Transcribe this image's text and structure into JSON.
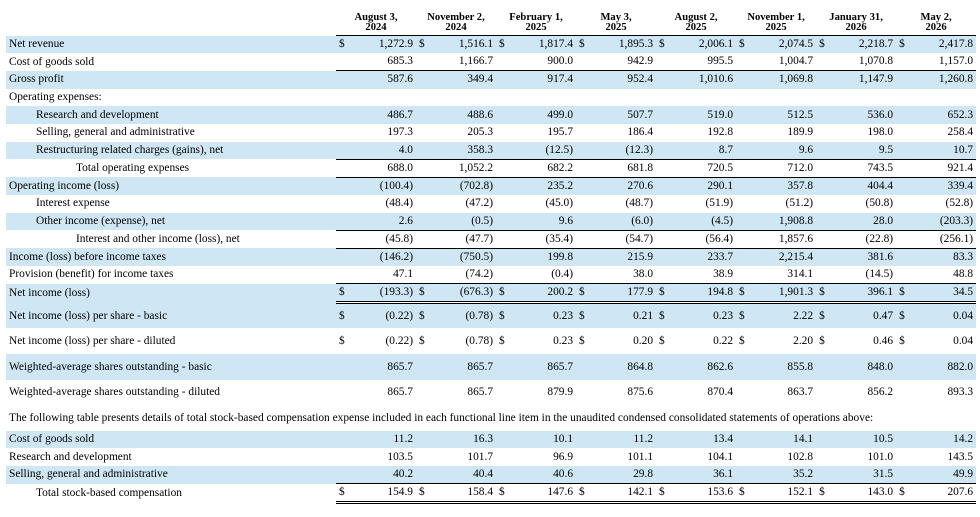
{
  "columns": [
    {
      "l1": "August 3,",
      "l2": "2024"
    },
    {
      "l1": "November 2,",
      "l2": "2024"
    },
    {
      "l1": "February 1,",
      "l2": "2025"
    },
    {
      "l1": "May 3,",
      "l2": "2025"
    },
    {
      "l1": "August 2,",
      "l2": "2025"
    },
    {
      "l1": "November 1,",
      "l2": "2025"
    },
    {
      "l1": "January 31,",
      "l2": "2026"
    },
    {
      "l1": "May 2,",
      "l2": "2026"
    }
  ],
  "currency": "$",
  "statement": [
    {
      "label": "Net revenue",
      "values": [
        "1,272.9",
        "1,516.1",
        "1,817.4",
        "1,895.3",
        "2,006.1",
        "2,074.5",
        "2,218.7",
        "2,417.8"
      ],
      "dollar": true,
      "indent": 0,
      "border": "",
      "shade": true
    },
    {
      "label": "Cost of goods sold",
      "values": [
        "685.3",
        "1,166.7",
        "900.0",
        "942.9",
        "995.5",
        "1,004.7",
        "1,070.8",
        "1,157.0"
      ],
      "dollar": false,
      "indent": 0,
      "border": "ul",
      "shade": false
    },
    {
      "label": "Gross profit",
      "values": [
        "587.6",
        "349.4",
        "917.4",
        "952.4",
        "1,010.6",
        "1,069.8",
        "1,147.9",
        "1,260.8"
      ],
      "dollar": false,
      "indent": 0,
      "border": "",
      "shade": true
    },
    {
      "label": "Operating expenses:",
      "values": [],
      "dollar": false,
      "indent": 0,
      "border": "",
      "shade": false
    },
    {
      "label": "Research and development",
      "values": [
        "486.7",
        "488.6",
        "499.0",
        "507.7",
        "519.0",
        "512.5",
        "536.0",
        "652.3"
      ],
      "dollar": false,
      "indent": 1,
      "border": "",
      "shade": true
    },
    {
      "label": "Selling, general and administrative",
      "values": [
        "197.3",
        "205.3",
        "195.7",
        "186.4",
        "192.8",
        "189.9",
        "198.0",
        "258.4"
      ],
      "dollar": false,
      "indent": 1,
      "border": "",
      "shade": false
    },
    {
      "label": "Restructuring related charges (gains), net",
      "values": [
        "4.0",
        "358.3",
        "(12.5)",
        "(12.3)",
        "8.7",
        "9.6",
        "9.5",
        "10.7"
      ],
      "dollar": false,
      "indent": 1,
      "border": "ul",
      "shade": true
    },
    {
      "label": "Total operating expenses",
      "values": [
        "688.0",
        "1,052.2",
        "682.2",
        "681.8",
        "720.5",
        "712.0",
        "743.5",
        "921.4"
      ],
      "dollar": false,
      "indent": 2,
      "border": "ul",
      "shade": false
    },
    {
      "label": "Operating income (loss)",
      "values": [
        "(100.4)",
        "(702.8)",
        "235.2",
        "270.6",
        "290.1",
        "357.8",
        "404.4",
        "339.4"
      ],
      "dollar": false,
      "indent": 0,
      "border": "",
      "shade": true
    },
    {
      "label": "Interest expense",
      "values": [
        "(48.4)",
        "(47.2)",
        "(45.0)",
        "(48.7)",
        "(51.9)",
        "(51.2)",
        "(50.8)",
        "(52.8)"
      ],
      "dollar": false,
      "indent": 1,
      "border": "",
      "shade": false
    },
    {
      "label": "Other income (expense), net",
      "values": [
        "2.6",
        "(0.5)",
        "9.6",
        "(6.0)",
        "(4.5)",
        "1,908.8",
        "28.0",
        "(203.3)"
      ],
      "dollar": false,
      "indent": 1,
      "border": "ul",
      "shade": true
    },
    {
      "label": "Interest and other income (loss), net",
      "values": [
        "(45.8)",
        "(47.7)",
        "(35.4)",
        "(54.7)",
        "(56.4)",
        "1,857.6",
        "(22.8)",
        "(256.1)"
      ],
      "dollar": false,
      "indent": 2,
      "border": "ul",
      "shade": false
    },
    {
      "label": "Income (loss) before income taxes",
      "values": [
        "(146.2)",
        "(750.5)",
        "199.8",
        "215.9",
        "233.7",
        "2,215.4",
        "381.6",
        "83.3"
      ],
      "dollar": false,
      "indent": 0,
      "border": "",
      "shade": true
    },
    {
      "label": "Provision (benefit) for income taxes",
      "values": [
        "47.1",
        "(74.2)",
        "(0.4)",
        "38.0",
        "38.9",
        "314.1",
        "(14.5)",
        "48.8"
      ],
      "dollar": false,
      "indent": 0,
      "border": "ul",
      "shade": false
    },
    {
      "label": "Net income (loss)",
      "values": [
        "(193.3)",
        "(676.3)",
        "200.2",
        "177.9",
        "194.8",
        "1,901.3",
        "396.1",
        "34.5"
      ],
      "dollar": true,
      "indent": 0,
      "border": "dbl",
      "shade": true
    }
  ],
  "per_share": [
    {
      "label": "Net income (loss) per share - basic",
      "values": [
        "(0.22)",
        "(0.78)",
        "0.23",
        "0.21",
        "0.23",
        "2.22",
        "0.47",
        "0.04"
      ],
      "dollar": true,
      "shade": true
    },
    {
      "label": "Net income (loss) per share - diluted",
      "values": [
        "(0.22)",
        "(0.78)",
        "0.23",
        "0.20",
        "0.22",
        "2.20",
        "0.46",
        "0.04"
      ],
      "dollar": true,
      "shade": false
    },
    {
      "label": "Weighted-average shares outstanding - basic",
      "values": [
        "865.7",
        "865.7",
        "865.7",
        "864.8",
        "862.6",
        "855.8",
        "848.0",
        "882.0"
      ],
      "dollar": false,
      "shade": true
    },
    {
      "label": "Weighted-average shares outstanding - diluted",
      "values": [
        "865.7",
        "865.7",
        "879.9",
        "875.6",
        "870.4",
        "863.7",
        "856.2",
        "893.3"
      ],
      "dollar": false,
      "shade": false
    }
  ],
  "note": "The following table presents details of total stock-based compensation expense included in each functional line item in the unaudited condensed consolidated statements of operations above:",
  "sbc": [
    {
      "label": "Cost of goods sold",
      "values": [
        "11.2",
        "16.3",
        "10.1",
        "11.2",
        "13.4",
        "14.1",
        "10.5",
        "14.2"
      ],
      "dollar": false,
      "indent": 0,
      "border": "",
      "shade": true
    },
    {
      "label": "Research and development",
      "values": [
        "103.5",
        "101.7",
        "96.9",
        "101.1",
        "104.1",
        "102.8",
        "101.0",
        "143.5"
      ],
      "dollar": false,
      "indent": 0,
      "border": "",
      "shade": false
    },
    {
      "label": "Selling, general and administrative",
      "values": [
        "40.2",
        "40.4",
        "40.6",
        "29.8",
        "36.1",
        "35.2",
        "31.5",
        "49.9"
      ],
      "dollar": false,
      "indent": 0,
      "border": "ul",
      "shade": true
    },
    {
      "label": "Total stock-based compensation",
      "values": [
        "154.9",
        "158.4",
        "147.6",
        "142.1",
        "153.6",
        "152.1",
        "143.0",
        "207.6"
      ],
      "dollar": true,
      "indent": 1,
      "border": "dbl",
      "shade": false
    }
  ]
}
